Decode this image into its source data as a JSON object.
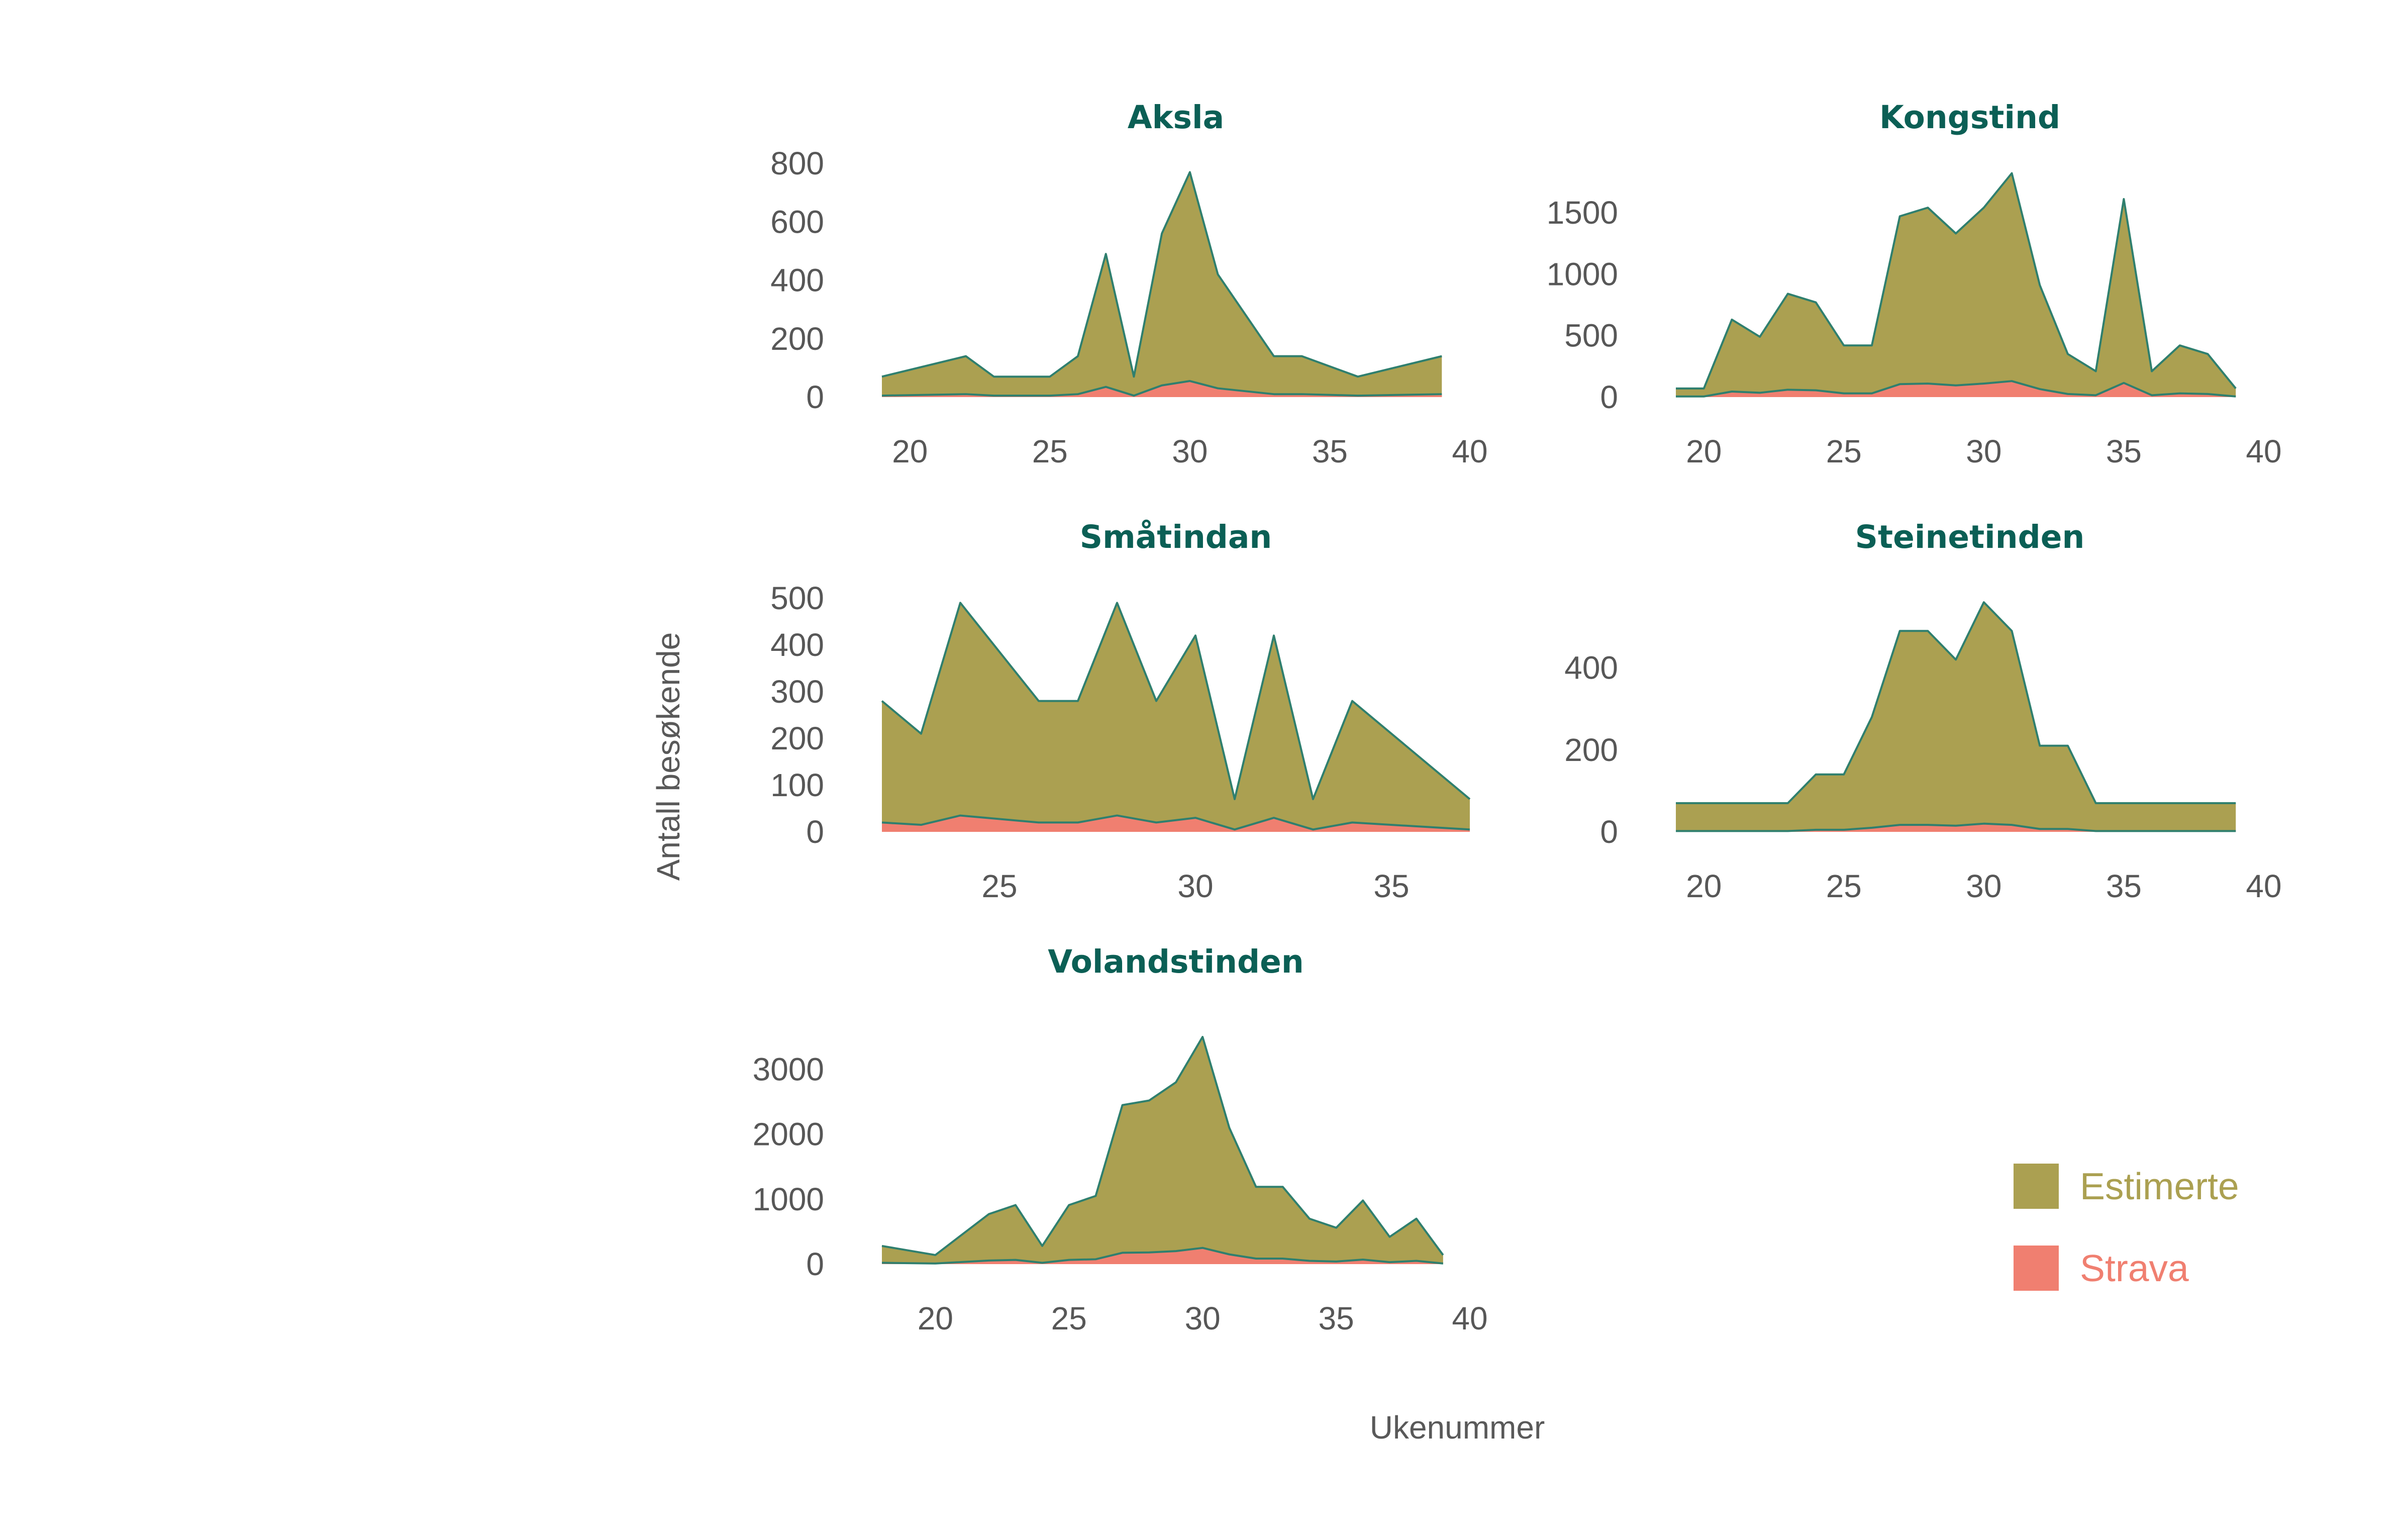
{
  "figure": {
    "xlabel": "Ukenummer",
    "ylabel": "Antall besøkende"
  },
  "colors": {
    "estimerte": "#aba051",
    "strava": "#f07f70",
    "outline": "#2f7f6e",
    "title": "#0b5f55"
  },
  "legend": {
    "placement": "bottom-right",
    "items": [
      {
        "key": "estimerte",
        "label": "Estimerte"
      },
      {
        "key": "strava",
        "label": "Strava"
      }
    ]
  },
  "chart_data": [
    {
      "type": "area",
      "title": "Aksla",
      "xlim": [
        19,
        40
      ],
      "ylim": [
        0,
        800
      ],
      "xticks": [
        20,
        25,
        30,
        35,
        40
      ],
      "yticks": [
        0,
        200,
        400,
        600,
        800
      ],
      "series": [
        {
          "key": "estimerte",
          "x": [
            19,
            22,
            23,
            25,
            26,
            27,
            28,
            29,
            30,
            31,
            33,
            34,
            36,
            39
          ],
          "y": [
            70,
            140,
            70,
            70,
            140,
            490,
            70,
            560,
            770,
            420,
            140,
            140,
            70,
            140
          ]
        },
        {
          "key": "strava",
          "x": [
            19,
            22,
            23,
            25,
            26,
            27,
            28,
            29,
            30,
            31,
            33,
            34,
            36,
            39
          ],
          "y": [
            5,
            10,
            5,
            5,
            10,
            35,
            5,
            40,
            55,
            30,
            10,
            10,
            5,
            10
          ]
        }
      ]
    },
    {
      "type": "area",
      "title": "Kongstind",
      "xlim": [
        19,
        40
      ],
      "ylim": [
        0,
        1900
      ],
      "xticks": [
        20,
        25,
        30,
        35,
        40
      ],
      "yticks": [
        0,
        500,
        1000,
        1500
      ],
      "series": [
        {
          "key": "estimerte",
          "x": [
            19,
            20,
            21,
            22,
            23,
            24,
            25,
            26,
            27,
            28,
            29,
            30,
            31,
            32,
            33,
            34,
            35,
            36,
            37,
            38,
            39
          ],
          "y": [
            70,
            70,
            630,
            490,
            840,
            770,
            420,
            420,
            1470,
            1540,
            1330,
            1540,
            1820,
            910,
            350,
            210,
            1610,
            210,
            420,
            350,
            70
          ]
        },
        {
          "key": "strava",
          "x": [
            19,
            20,
            21,
            22,
            23,
            24,
            25,
            26,
            27,
            28,
            29,
            30,
            31,
            32,
            33,
            34,
            35,
            36,
            37,
            38,
            39
          ],
          "y": [
            5,
            5,
            45,
            35,
            60,
            55,
            30,
            30,
            105,
            110,
            95,
            110,
            130,
            65,
            25,
            15,
            115,
            15,
            30,
            25,
            5
          ]
        }
      ]
    },
    {
      "type": "area",
      "title": "Småtindan",
      "xlim": [
        22,
        37
      ],
      "ylim": [
        0,
        500
      ],
      "xticks": [
        25,
        30,
        35
      ],
      "yticks": [
        0,
        100,
        200,
        300,
        400,
        500
      ],
      "series": [
        {
          "key": "estimerte",
          "x": [
            22,
            23,
            24,
            26,
            27,
            28,
            29,
            30,
            31,
            32,
            33,
            34,
            37
          ],
          "y": [
            280,
            210,
            490,
            280,
            280,
            490,
            280,
            420,
            70,
            420,
            70,
            280,
            70
          ]
        },
        {
          "key": "strava",
          "x": [
            22,
            23,
            24,
            26,
            27,
            28,
            29,
            30,
            31,
            32,
            33,
            34,
            37
          ],
          "y": [
            20,
            15,
            35,
            20,
            20,
            35,
            20,
            30,
            5,
            30,
            5,
            20,
            5
          ]
        }
      ]
    },
    {
      "type": "area",
      "title": "Steinetinden",
      "xlim": [
        19,
        40
      ],
      "ylim": [
        0,
        570
      ],
      "xticks": [
        20,
        25,
        30,
        35,
        40
      ],
      "yticks": [
        0,
        200,
        400
      ],
      "series": [
        {
          "key": "estimerte",
          "x": [
            19,
            23,
            24,
            25,
            26,
            27,
            28,
            29,
            30,
            31,
            32,
            33,
            34,
            39
          ],
          "y": [
            70,
            70,
            140,
            140,
            280,
            490,
            490,
            420,
            560,
            490,
            210,
            210,
            70,
            70
          ]
        },
        {
          "key": "strava",
          "x": [
            19,
            23,
            24,
            25,
            26,
            27,
            28,
            29,
            30,
            31,
            32,
            33,
            34,
            39
          ],
          "y": [
            2,
            2,
            5,
            5,
            10,
            17,
            17,
            15,
            20,
            17,
            7,
            7,
            2,
            2
          ]
        }
      ]
    },
    {
      "type": "area",
      "title": "Volandstinden",
      "xlim": [
        18,
        40
      ],
      "ylim": [
        0,
        3600
      ],
      "xticks": [
        20,
        25,
        30,
        35,
        40
      ],
      "yticks": [
        0,
        1000,
        2000,
        3000
      ],
      "series": [
        {
          "key": "estimerte",
          "x": [
            18,
            20,
            22,
            23,
            24,
            25,
            26,
            27,
            28,
            29,
            30,
            31,
            32,
            33,
            34,
            35,
            36,
            37,
            38,
            39
          ],
          "y": [
            280,
            140,
            770,
            910,
            280,
            910,
            1050,
            2450,
            2520,
            2800,
            3500,
            2100,
            1190,
            1190,
            700,
            560,
            980,
            420,
            700,
            140
          ]
        },
        {
          "key": "strava",
          "x": [
            18,
            20,
            22,
            23,
            24,
            25,
            26,
            27,
            28,
            29,
            30,
            31,
            32,
            33,
            34,
            35,
            36,
            37,
            38,
            39
          ],
          "y": [
            20,
            10,
            55,
            65,
            20,
            65,
            75,
            175,
            180,
            200,
            250,
            150,
            85,
            85,
            50,
            40,
            70,
            30,
            50,
            10
          ]
        }
      ]
    }
  ]
}
